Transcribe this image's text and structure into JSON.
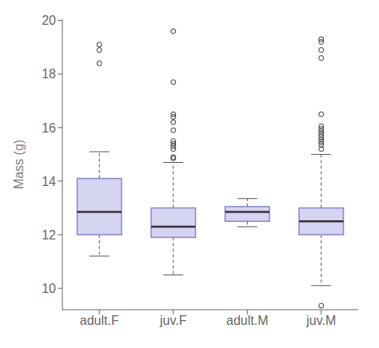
{
  "chart_data": {
    "type": "box",
    "categories": [
      "adult.F",
      "juv.F",
      "adult.M",
      "juv.M"
    ],
    "q1": [
      12.0,
      11.9,
      12.5,
      12.0
    ],
    "median": [
      12.85,
      12.3,
      12.85,
      12.5
    ],
    "q3": [
      14.1,
      13.0,
      13.05,
      13.0
    ],
    "whisker_low": [
      11.2,
      10.5,
      12.3,
      10.1
    ],
    "whisker_high": [
      15.1,
      14.7,
      13.35,
      15.0
    ],
    "outliers": [
      [
        18.4,
        18.9,
        19.1
      ],
      [
        14.85,
        14.9,
        15.2,
        15.3,
        15.4,
        15.5,
        15.9,
        16.2,
        16.4,
        16.5,
        17.7,
        19.6
      ],
      [],
      [
        9.35,
        15.2,
        15.35,
        15.45,
        15.55,
        15.65,
        15.75,
        15.85,
        15.95,
        16.05,
        16.5,
        18.6,
        18.9,
        19.2,
        19.3
      ]
    ],
    "ylabel": "Mass (g)",
    "ylim": [
      9.2,
      20.05
    ],
    "yticks": [
      10,
      12,
      14,
      16,
      18,
      20
    ]
  }
}
